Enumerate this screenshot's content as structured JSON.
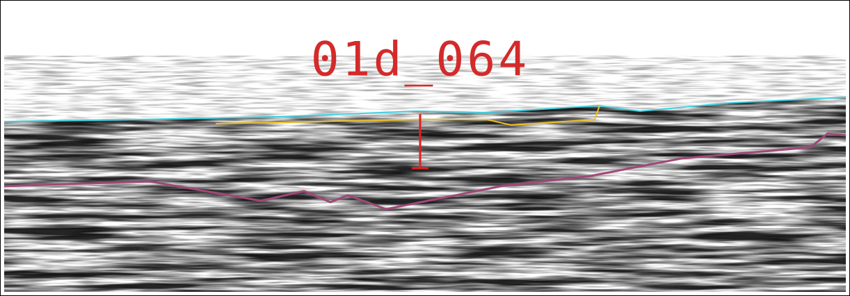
{
  "label": "01d_064"
}
